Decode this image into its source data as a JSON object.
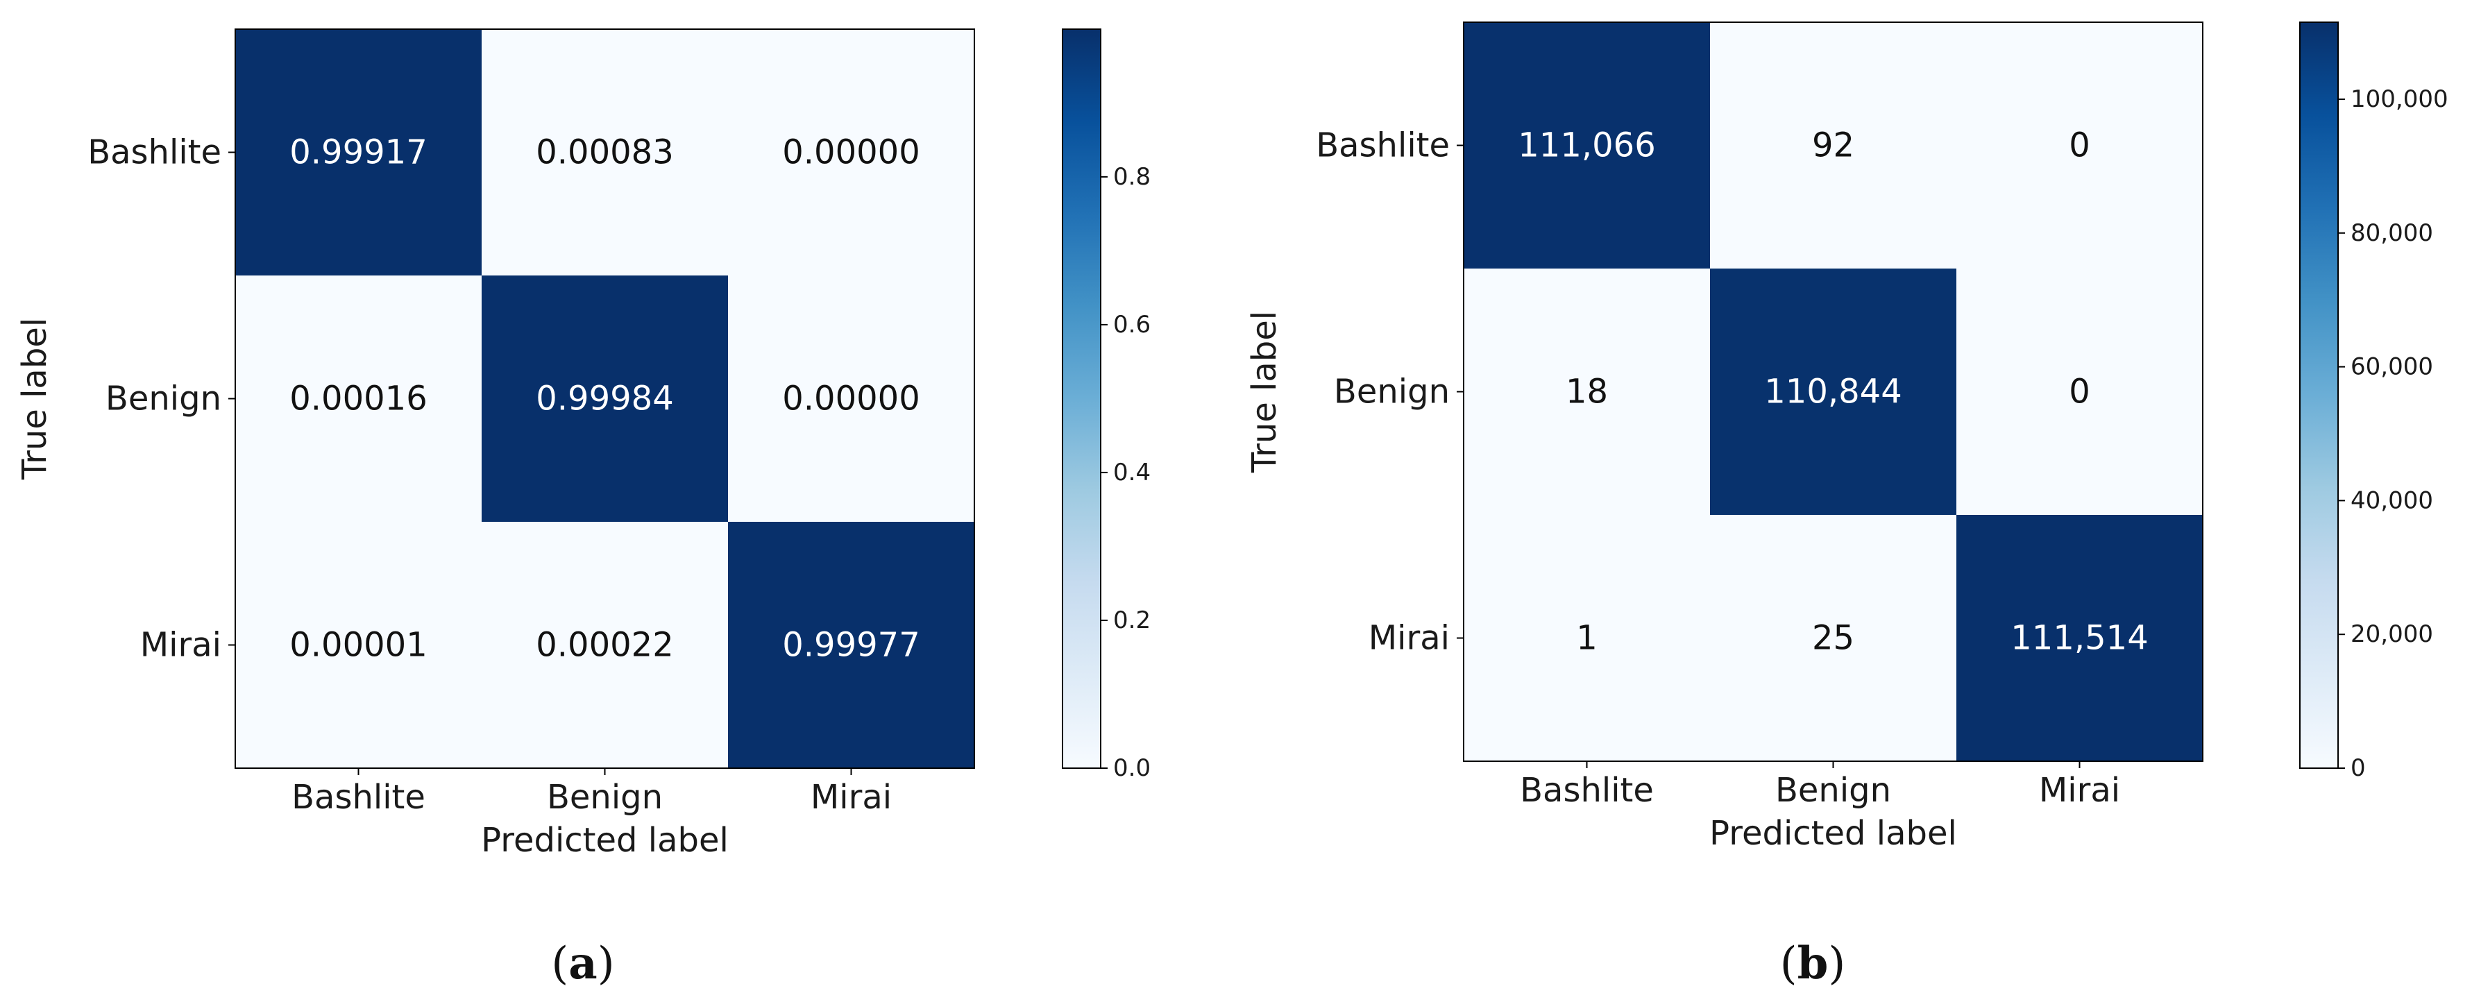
{
  "chart_data": [
    {
      "type": "heatmap",
      "caption": "a",
      "xlabel": "Predicted label",
      "ylabel": "True label",
      "x_categories": [
        "Bashlite",
        "Benign",
        "Mirai"
      ],
      "y_categories": [
        "Bashlite",
        "Benign",
        "Mirai"
      ],
      "values": [
        [
          0.99917,
          0.00083,
          0.0
        ],
        [
          0.00016,
          0.99984,
          0.0
        ],
        [
          1e-05,
          0.00022,
          0.99977
        ]
      ],
      "cell_labels": [
        [
          "0.99917",
          "0.00083",
          "0.00000"
        ],
        [
          "0.00016",
          "0.99984",
          "0.00000"
        ],
        [
          "0.00001",
          "0.00022",
          "0.99977"
        ]
      ],
      "colormap": "Blues",
      "colorbar": {
        "min": 0.0,
        "max": 0.99984,
        "ticks": [
          0.0,
          0.2,
          0.4,
          0.6,
          0.8
        ],
        "tick_labels": [
          "0.0",
          "0.2",
          "0.4",
          "0.6",
          "0.8"
        ]
      }
    },
    {
      "type": "heatmap",
      "caption": "b",
      "xlabel": "Predicted label",
      "ylabel": "True label",
      "x_categories": [
        "Bashlite",
        "Benign",
        "Mirai"
      ],
      "y_categories": [
        "Bashlite",
        "Benign",
        "Mirai"
      ],
      "values": [
        [
          111066,
          92,
          0
        ],
        [
          18,
          110844,
          0
        ],
        [
          1,
          25,
          111514
        ]
      ],
      "cell_labels": [
        [
          "111,066",
          "92",
          "0"
        ],
        [
          "18",
          "110,844",
          "0"
        ],
        [
          "1",
          "25",
          "111,514"
        ]
      ],
      "colormap": "Blues",
      "colorbar": {
        "min": 0,
        "max": 111514,
        "ticks": [
          0,
          20000,
          40000,
          60000,
          80000,
          100000
        ],
        "tick_labels": [
          "0",
          "20,000",
          "40,000",
          "60,000",
          "80,000",
          "100,000"
        ]
      }
    }
  ],
  "colors": {
    "cmap_low": "#f7fbff",
    "cmap_high": "#08306b",
    "text_on_dark": "#ffffff",
    "text_on_light": "#111111",
    "frame": "#000000"
  }
}
